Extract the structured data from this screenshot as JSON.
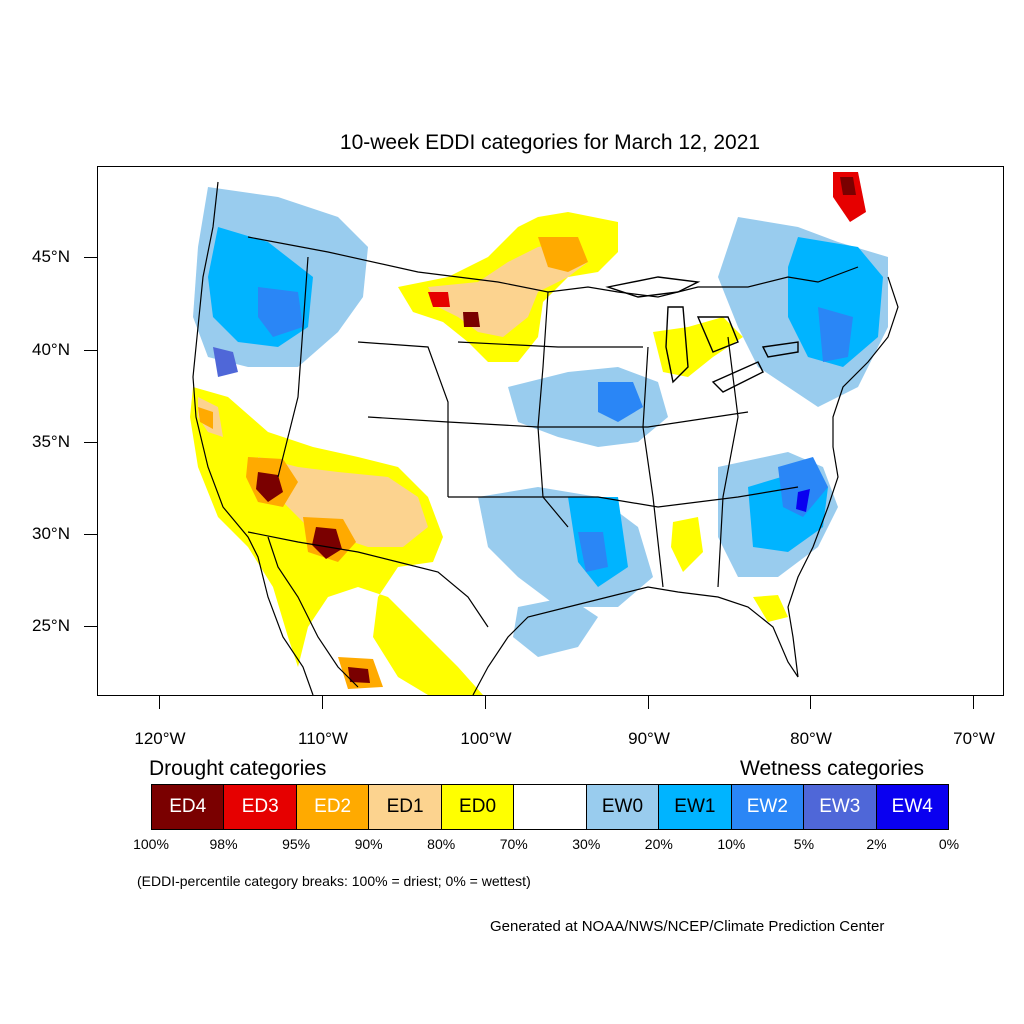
{
  "title": "10-week EDDI categories for March 12, 2021",
  "map": {
    "lat_ticks": [
      "45°N",
      "40°N",
      "35°N",
      "30°N",
      "25°N"
    ],
    "lon_ticks": [
      "120°W",
      "110°W",
      "100°W",
      "90°W",
      "80°W",
      "70°W"
    ]
  },
  "legend": {
    "drought_heading": "Drought categories",
    "wetness_heading": "Wetness categories",
    "categories": [
      {
        "label": "ED4",
        "color": "#7a0000",
        "text_color": "#ffffff"
      },
      {
        "label": "ED3",
        "color": "#e60000",
        "text_color": "#ffffff"
      },
      {
        "label": "ED2",
        "color": "#ffaa00",
        "text_color": "#ffffff"
      },
      {
        "label": "ED1",
        "color": "#fcd38f",
        "text_color": "#000000"
      },
      {
        "label": "ED0",
        "color": "#ffff00",
        "text_color": "#000000"
      },
      {
        "label": "",
        "color": "#ffffff",
        "text_color": "#000000"
      },
      {
        "label": "EW0",
        "color": "#99ccee",
        "text_color": "#000000"
      },
      {
        "label": "EW1",
        "color": "#00b4ff",
        "text_color": "#000000"
      },
      {
        "label": "EW2",
        "color": "#2a86f6",
        "text_color": "#ffffff"
      },
      {
        "label": "EW3",
        "color": "#4f67d8",
        "text_color": "#ffffff"
      },
      {
        "label": "EW4",
        "color": "#0a00f0",
        "text_color": "#ffffff"
      }
    ],
    "breaks": [
      "100%",
      "98%",
      "95%",
      "90%",
      "80%",
      "70%",
      "30%",
      "20%",
      "10%",
      "5%",
      "2%",
      "0%"
    ]
  },
  "note": "(EDDI-percentile category breaks: 100% = driest; 0% = wettest)",
  "credit": "Generated at NOAA/NWS/NCEP/Climate Prediction Center"
}
